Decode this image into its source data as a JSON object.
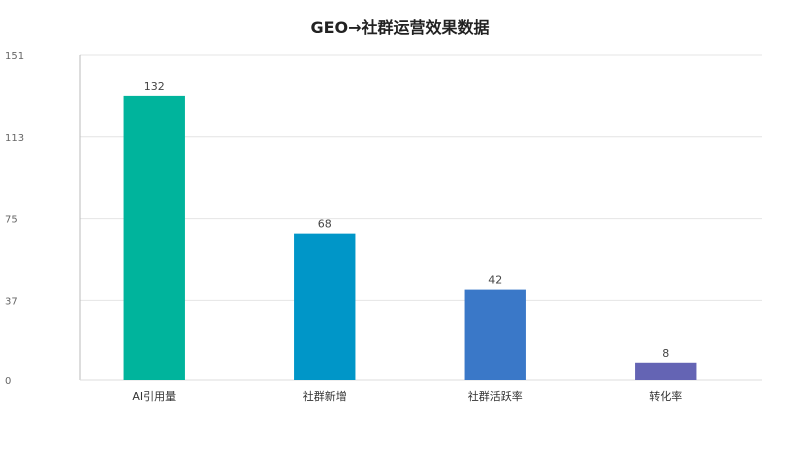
{
  "chart_data": {
    "type": "bar",
    "title": "GEO→社群运营效果数据",
    "categories": [
      "AI引用量",
      "社群新增",
      "社群活跃率",
      "转化率"
    ],
    "values": [
      132,
      68,
      42,
      8
    ],
    "colors": [
      "#00b49c",
      "#0096c8",
      "#3a78c8",
      "#6464b4"
    ],
    "yticks": [
      0,
      37,
      75,
      113,
      151
    ],
    "ylim": [
      0,
      151
    ],
    "xlabel": "",
    "ylabel": "",
    "grid": true,
    "legend": "none"
  }
}
